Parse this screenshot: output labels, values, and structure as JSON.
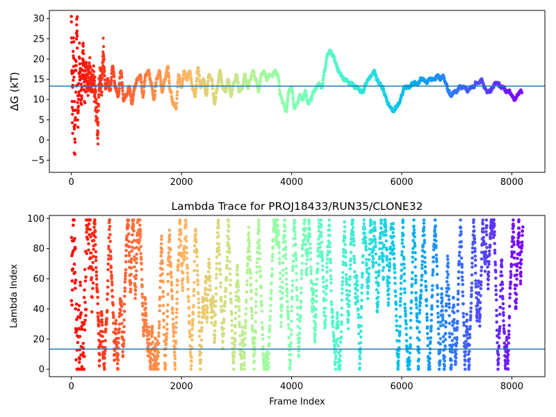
{
  "chart_data": [
    {
      "type": "line",
      "title": "",
      "xlabel": "",
      "ylabel": "ΔG (kT)",
      "xlim": [
        -400,
        8600
      ],
      "ylim": [
        -8,
        32
      ],
      "xticks": [
        0,
        2000,
        4000,
        6000,
        8000
      ],
      "yticks": [
        -5,
        0,
        5,
        10,
        15,
        20,
        25,
        30
      ],
      "reference_line": 13.3,
      "reference_color": "#1f77b4",
      "colormap": "rainbow (red at frame 0 to violet at last frame)",
      "grid": false,
      "legend": "none",
      "series": [
        {
          "x": [
            0,
            20,
            40,
            60,
            80,
            100,
            120,
            150,
            180,
            210,
            240,
            270,
            300,
            330,
            360,
            400,
            430,
            460,
            480,
            500,
            520,
            550,
            580,
            620,
            660,
            700,
            750,
            800,
            850,
            900,
            950,
            1000,
            1050,
            1100,
            1150,
            1200,
            1250,
            1300,
            1350,
            1400,
            1450,
            1500,
            1550,
            1600,
            1650,
            1700,
            1750,
            1800,
            1850,
            1900,
            1950,
            2000,
            2050,
            2100,
            2150,
            2200,
            2250,
            2300,
            2350,
            2400,
            2450,
            2500,
            2550,
            2600,
            2650,
            2700,
            2750,
            2800,
            2850,
            2900,
            2950,
            3000,
            3050,
            3100,
            3150,
            3200,
            3250,
            3300,
            3350,
            3400,
            3450,
            3500,
            3550,
            3600,
            3650,
            3700,
            3750,
            3800,
            3850,
            3900,
            3950,
            4000,
            4050,
            4100,
            4150,
            4200,
            4250,
            4300,
            4350,
            4400,
            4450,
            4500,
            4550,
            4600,
            4650,
            4700,
            4750,
            4800,
            4850,
            4900,
            4950,
            5000,
            5050,
            5100,
            5150,
            5200,
            5250,
            5300,
            5350,
            5400,
            5450,
            5500,
            5550,
            5600,
            5650,
            5700,
            5750,
            5800,
            5850,
            5900,
            5950,
            6000,
            6050,
            6100,
            6150,
            6200,
            6250,
            6300,
            6350,
            6400,
            6450,
            6500,
            6550,
            6600,
            6650,
            6700,
            6750,
            6800,
            6850,
            6900,
            6950,
            7000,
            7050,
            7100,
            7150,
            7200,
            7250,
            7300,
            7350,
            7400,
            7450,
            7500,
            7550,
            7600,
            7650,
            7700,
            7750,
            7800,
            7850,
            7900,
            7950,
            8000,
            8050,
            8100,
            8150,
            8200
          ],
          "y": [
            30,
            4,
            22,
            0,
            16,
            26,
            6,
            20,
            10,
            22,
            14,
            17,
            12,
            18,
            14,
            15,
            12,
            6,
            1,
            12,
            16,
            13,
            21,
            13,
            15,
            12,
            18,
            13,
            11,
            17,
            10,
            11,
            13,
            9,
            13,
            15,
            16,
            11,
            16,
            17,
            14,
            10,
            15,
            17,
            12,
            15,
            18,
            12,
            9,
            8,
            16,
            13,
            17,
            15,
            17,
            13,
            11,
            18,
            13,
            15,
            11,
            16,
            15,
            9,
            13,
            17,
            13,
            12,
            15,
            11,
            14,
            16,
            12,
            13,
            16,
            13,
            15,
            17,
            15,
            12,
            16,
            17,
            15,
            16,
            16,
            17,
            16,
            11,
            9,
            7,
            12,
            13,
            8,
            9,
            11,
            10,
            12,
            9,
            10,
            12,
            13,
            14,
            13,
            17,
            21,
            22,
            21,
            19,
            17,
            16,
            15,
            15,
            14,
            14,
            13,
            13,
            12,
            12,
            14,
            15,
            16,
            17,
            15,
            14,
            13,
            11,
            9,
            8,
            7,
            8,
            9,
            11,
            13,
            13,
            13,
            14,
            14,
            14,
            15,
            15,
            14,
            15,
            15,
            15,
            16,
            15,
            16,
            14,
            12,
            11,
            12,
            12,
            13,
            13,
            13,
            12,
            13,
            13,
            14,
            14,
            15,
            13,
            12,
            12,
            13,
            14,
            14,
            13,
            13,
            12,
            12,
            11,
            10,
            11,
            12,
            12
          ]
        }
      ]
    },
    {
      "type": "scatter",
      "title": "Lambda Trace for PROJ18433/RUN35/CLONE32",
      "xlabel": "Frame Index",
      "ylabel": "Lambda Index",
      "xlim": [
        -400,
        8600
      ],
      "ylim": [
        -5,
        102
      ],
      "xticks": [
        0,
        2000,
        4000,
        6000,
        8000
      ],
      "yticks": [
        0,
        20,
        40,
        60,
        80,
        100
      ],
      "reference_line": 13.3,
      "reference_color": "#1f77b4",
      "colormap": "rainbow (red at frame 0 to violet at last frame)",
      "grid": false,
      "legend": "none",
      "x_range": [
        0,
        8200
      ],
      "y_range": [
        0,
        99
      ],
      "point_count": 3000
    }
  ]
}
